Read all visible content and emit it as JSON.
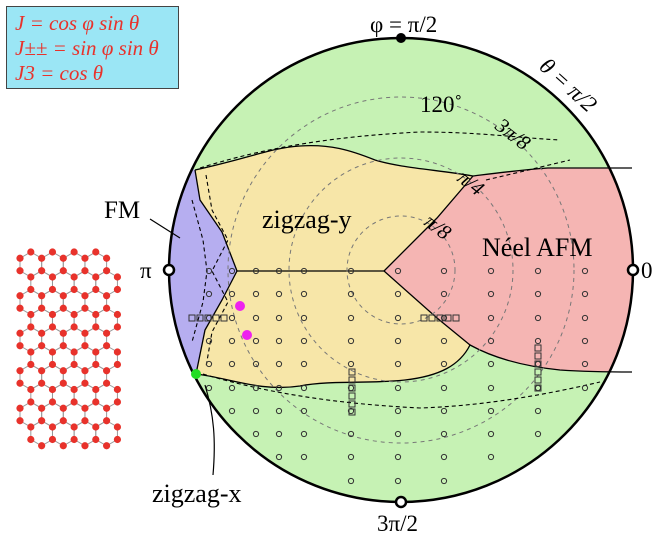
{
  "formulas": {
    "line1": "J = cos φ sin θ",
    "line2": "J±± = sin φ sin θ",
    "line3": "J3 = cos θ"
  },
  "angle_labels": {
    "top": "φ = π/2",
    "bottom": "3π/2",
    "left": "π",
    "right": "0",
    "theta_outer": "θ = π/2"
  },
  "circle_labels": {
    "c120": "120˚",
    "c3pi8": "3π/8",
    "cpi4": "π/4",
    "cpi8": "π/8"
  },
  "phases": {
    "fm": "FM",
    "zigzag_y": "zigzag-y",
    "neel": "Néel AFM",
    "zigzag_x": "zigzag-x"
  },
  "colors": {
    "fm": "#b6aef0",
    "zigzag": "#f7e6a8",
    "neel": "#f5b5b3",
    "outer": "#c6f2b4",
    "formula_box": "#9be6f5",
    "formula_text": "#e8322b",
    "magenta_points": "#ee22ee",
    "green_point": "#22dd22",
    "lattice_site": "#e8322b"
  }
}
